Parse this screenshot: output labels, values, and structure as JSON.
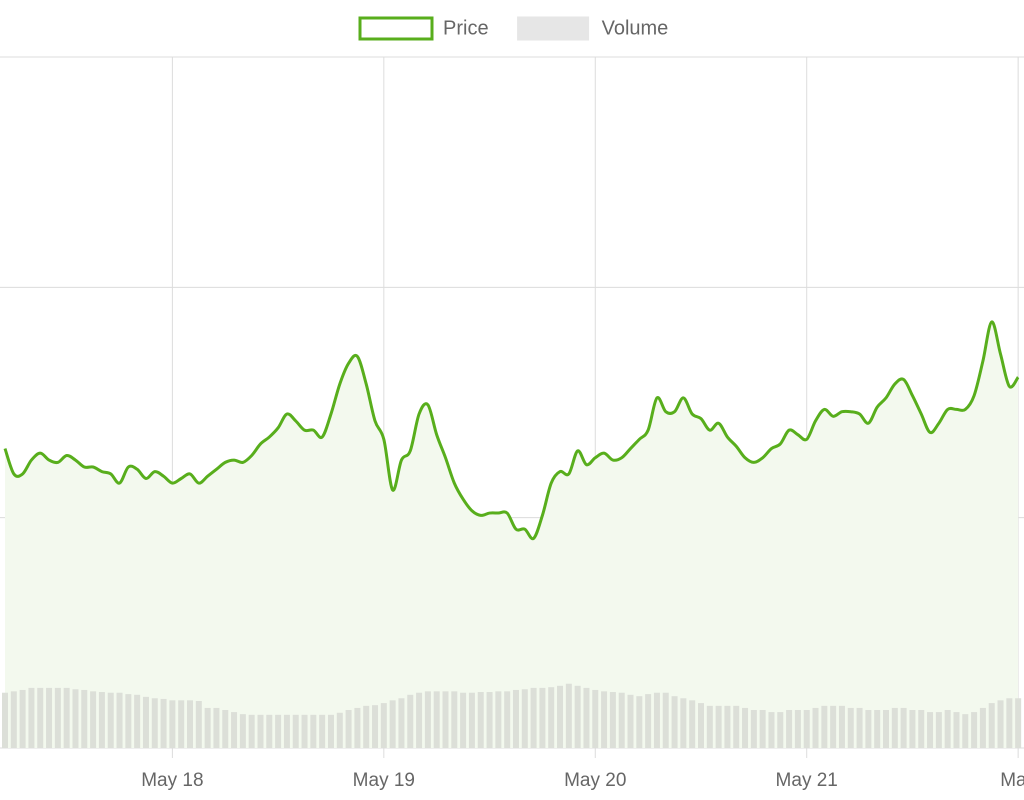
{
  "chart_data": {
    "type": "line",
    "legend": "top",
    "grid": true,
    "ylim": [
      0,
      3
    ],
    "y_gridlines": [
      0,
      1,
      2,
      3
    ],
    "y2lim": [
      0,
      100
    ],
    "categories": [
      null,
      null,
      null,
      null,
      null,
      null,
      null,
      null,
      null,
      null,
      null,
      null,
      null,
      null,
      null,
      null,
      null,
      null,
      null,
      "May 18",
      null,
      null,
      null,
      null,
      null,
      null,
      null,
      null,
      null,
      null,
      null,
      null,
      null,
      null,
      null,
      null,
      null,
      null,
      null,
      null,
      null,
      null,
      null,
      "May 19",
      null,
      null,
      null,
      null,
      null,
      null,
      null,
      null,
      null,
      null,
      null,
      null,
      null,
      null,
      null,
      null,
      null,
      null,
      null,
      null,
      null,
      null,
      null,
      "May 20",
      null,
      null,
      null,
      null,
      null,
      null,
      null,
      null,
      null,
      null,
      null,
      null,
      null,
      null,
      null,
      null,
      null,
      null,
      null,
      null,
      null,
      null,
      null,
      "May 21",
      null,
      null,
      null,
      null,
      null,
      null,
      null,
      null,
      null,
      null,
      null,
      null,
      null,
      null,
      null,
      null,
      null,
      null,
      null,
      null,
      null,
      null,
      null,
      "May"
    ],
    "series": [
      {
        "name": "Price",
        "type": "area",
        "color": "#58ae1c",
        "fill": "#f3f9ee",
        "values": [
          1.3,
          1.19,
          1.19,
          1.25,
          1.28,
          1.25,
          1.24,
          1.27,
          1.25,
          1.22,
          1.22,
          1.2,
          1.19,
          1.15,
          1.22,
          1.21,
          1.17,
          1.2,
          1.18,
          1.15,
          1.17,
          1.19,
          1.15,
          1.18,
          1.21,
          1.24,
          1.25,
          1.24,
          1.27,
          1.32,
          1.35,
          1.39,
          1.45,
          1.42,
          1.38,
          1.38,
          1.35,
          1.45,
          1.58,
          1.67,
          1.7,
          1.58,
          1.42,
          1.34,
          1.12,
          1.25,
          1.29,
          1.45,
          1.49,
          1.36,
          1.26,
          1.15,
          1.08,
          1.03,
          1.01,
          1.02,
          1.02,
          1.02,
          0.95,
          0.95,
          0.91,
          1.01,
          1.15,
          1.2,
          1.19,
          1.29,
          1.23,
          1.26,
          1.28,
          1.25,
          1.26,
          1.3,
          1.34,
          1.38,
          1.52,
          1.46,
          1.46,
          1.52,
          1.45,
          1.43,
          1.38,
          1.41,
          1.35,
          1.31,
          1.26,
          1.24,
          1.26,
          1.3,
          1.32,
          1.38,
          1.36,
          1.34,
          1.42,
          1.47,
          1.44,
          1.46,
          1.46,
          1.45,
          1.41,
          1.48,
          1.52,
          1.58,
          1.6,
          1.53,
          1.45,
          1.37,
          1.41,
          1.47,
          1.47,
          1.47,
          1.53,
          1.68,
          1.85,
          1.71,
          1.57,
          1.61
        ]
      },
      {
        "name": "Volume",
        "type": "bar",
        "axis": "y2",
        "color": "#dcdfd8",
        "legend_color": "#e6e6e6",
        "values": [
          8.0,
          8.2,
          8.4,
          8.7,
          8.7,
          8.7,
          8.7,
          8.7,
          8.5,
          8.4,
          8.2,
          8.1,
          8.0,
          8.0,
          7.8,
          7.7,
          7.4,
          7.2,
          7.1,
          6.9,
          6.9,
          6.9,
          6.8,
          5.8,
          5.8,
          5.5,
          5.2,
          4.9,
          4.8,
          4.8,
          4.8,
          4.8,
          4.8,
          4.8,
          4.8,
          4.8,
          4.8,
          4.8,
          5.1,
          5.5,
          5.8,
          6.1,
          6.2,
          6.5,
          6.9,
          7.2,
          7.7,
          8.0,
          8.2,
          8.2,
          8.2,
          8.2,
          8.0,
          8.0,
          8.1,
          8.1,
          8.2,
          8.2,
          8.4,
          8.5,
          8.7,
          8.7,
          8.8,
          9.0,
          9.3,
          9.0,
          8.7,
          8.4,
          8.2,
          8.1,
          8.0,
          7.7,
          7.5,
          7.8,
          8.0,
          8.0,
          7.5,
          7.2,
          6.9,
          6.5,
          6.1,
          6.1,
          6.1,
          6.1,
          5.8,
          5.5,
          5.5,
          5.2,
          5.2,
          5.5,
          5.5,
          5.5,
          5.8,
          6.1,
          6.1,
          6.1,
          5.8,
          5.8,
          5.5,
          5.5,
          5.5,
          5.8,
          5.8,
          5.5,
          5.5,
          5.2,
          5.2,
          5.5,
          5.2,
          4.9,
          5.2,
          5.8,
          6.5,
          6.9,
          7.2,
          7.2
        ]
      }
    ]
  }
}
